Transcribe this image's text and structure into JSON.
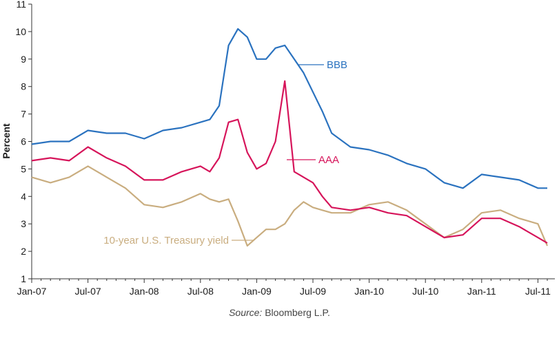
{
  "chart_data": {
    "type": "line",
    "title": "",
    "xlabel": "",
    "ylabel": "Percent",
    "ylim": [
      1,
      11
    ],
    "yticks": [
      1,
      2,
      3,
      4,
      5,
      6,
      7,
      8,
      9,
      10,
      11
    ],
    "xticks": [
      "Jan-07",
      "Jul-07",
      "Jan-08",
      "Jul-08",
      "Jan-09",
      "Jul-09",
      "Jan-10",
      "Jul-10",
      "Jan-11",
      "Jul-11"
    ],
    "x": [
      "Jan-07",
      "Mar-07",
      "May-07",
      "Jul-07",
      "Sep-07",
      "Nov-07",
      "Jan-08",
      "Mar-08",
      "May-08",
      "Jul-08",
      "Aug-08",
      "Sep-08",
      "Oct-08",
      "Nov-08",
      "Dec-08",
      "Jan-09",
      "Feb-09",
      "Mar-09",
      "Apr-09",
      "May-09",
      "Jun-09",
      "Jul-09",
      "Aug-09",
      "Sep-09",
      "Nov-09",
      "Jan-10",
      "Mar-10",
      "May-10",
      "Jul-10",
      "Sep-10",
      "Nov-10",
      "Jan-11",
      "Mar-11",
      "May-11",
      "Jul-11",
      "Aug-11"
    ],
    "series": [
      {
        "name": "BBB",
        "color": "#2a72bf",
        "values": [
          5.9,
          6.0,
          6.0,
          6.4,
          6.3,
          6.3,
          6.1,
          6.4,
          6.5,
          6.7,
          6.8,
          7.3,
          9.5,
          10.1,
          9.8,
          9.0,
          9.0,
          9.4,
          9.5,
          9.0,
          8.5,
          7.8,
          7.1,
          6.3,
          5.8,
          5.7,
          5.5,
          5.2,
          5.0,
          4.5,
          4.3,
          4.8,
          4.7,
          4.6,
          4.3,
          4.3
        ],
        "label_text": "BBB"
      },
      {
        "name": "AAA",
        "color": "#d6145a",
        "values": [
          5.3,
          5.4,
          5.3,
          5.8,
          5.4,
          5.1,
          4.6,
          4.6,
          4.9,
          5.1,
          4.9,
          5.4,
          6.7,
          6.8,
          5.6,
          5.0,
          5.2,
          6.0,
          8.2,
          4.9,
          4.7,
          4.5,
          4.0,
          3.6,
          3.5,
          3.6,
          3.4,
          3.3,
          2.9,
          2.5,
          2.6,
          3.2,
          3.2,
          2.9,
          2.5,
          2.3
        ],
        "label_text": "AAA"
      },
      {
        "name": "10-year U.S. Treasury yield",
        "color": "#c9ad7f",
        "values": [
          4.7,
          4.5,
          4.7,
          5.1,
          4.7,
          4.3,
          3.7,
          3.6,
          3.8,
          4.1,
          3.9,
          3.8,
          3.9,
          3.1,
          2.2,
          2.5,
          2.8,
          2.8,
          3.0,
          3.5,
          3.8,
          3.6,
          3.5,
          3.4,
          3.4,
          3.7,
          3.8,
          3.5,
          3.0,
          2.5,
          2.8,
          3.4,
          3.5,
          3.2,
          3.0,
          2.2
        ],
        "label_text": "10-year U.S. Treasury yield"
      }
    ],
    "grid": false,
    "legend": "inline labels",
    "source": {
      "prefix": "Source:",
      "text": " Bloomberg L.P."
    }
  }
}
